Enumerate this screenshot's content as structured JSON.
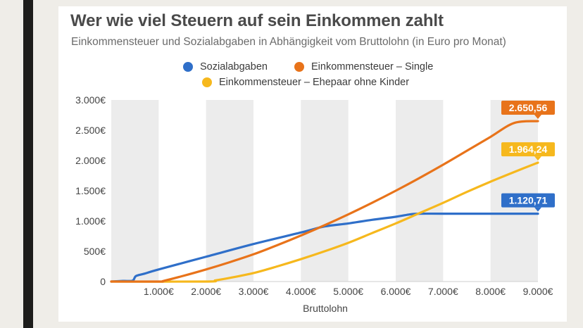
{
  "chart_data": {
    "type": "line",
    "title": "Wer wie viel Steuern auf sein Einkommen zahlt",
    "subtitle": "Einkommensteuer und Sozialabgaben in Abhängigkeit vom Bruttolohn (in Euro pro Monat)",
    "xlabel": "Bruttolohn",
    "ylabel": "",
    "xlim": [
      0,
      9000
    ],
    "ylim": [
      0,
      3000
    ],
    "x_ticks": [
      1000,
      2000,
      3000,
      4000,
      5000,
      6000,
      7000,
      8000,
      9000
    ],
    "x_tick_labels": [
      "1.000€",
      "2.000€",
      "3.000€",
      "4.000€",
      "5.000€",
      "6.000€",
      "7.000€",
      "8.000€",
      "9.000€"
    ],
    "y_ticks": [
      0,
      500,
      1000,
      1500,
      2000,
      2500,
      3000
    ],
    "y_tick_labels": [
      "0",
      "500€",
      "1.000€",
      "1.500€",
      "2.000€",
      "2.500€",
      "3.000€"
    ],
    "grid": "alternating vertical bands",
    "legend_position": "top",
    "series": [
      {
        "name": "Sozialabgaben",
        "color": "#2f6fc9",
        "end_label": "1.120,71",
        "x": [
          0,
          250,
          450,
          520,
          700,
          1000,
          2000,
          3000,
          4000,
          4500,
          5000,
          5500,
          6000,
          6300,
          6500,
          7000,
          8000,
          9000
        ],
        "y": [
          0,
          10,
          15,
          90,
          130,
          200,
          410,
          620,
          810,
          910,
          960,
          1020,
          1070,
          1110,
          1120.71,
          1120.71,
          1120.71,
          1120.71
        ]
      },
      {
        "name": "Einkommensteuer – Single",
        "color": "#e8731a",
        "end_label": "2.650,56",
        "x": [
          0,
          1000,
          1100,
          1500,
          2000,
          2500,
          3000,
          3500,
          4000,
          4500,
          5000,
          5500,
          6000,
          6500,
          7000,
          7500,
          8000,
          8500,
          9000
        ],
        "y": [
          0,
          0,
          10,
          90,
          200,
          320,
          450,
          600,
          760,
          930,
          1110,
          1300,
          1500,
          1710,
          1930,
          2160,
          2390,
          2620,
          2650.56
        ]
      },
      {
        "name": "Einkommensteuer – Ehepaar ohne Kinder",
        "color": "#f6b81d",
        "end_label": "1.964,24",
        "x": [
          0,
          2000,
          2200,
          2500,
          3000,
          3500,
          4000,
          4500,
          5000,
          5500,
          6000,
          6500,
          7000,
          7500,
          8000,
          8500,
          9000
        ],
        "y": [
          0,
          0,
          20,
          60,
          140,
          250,
          370,
          500,
          640,
          800,
          960,
          1130,
          1300,
          1480,
          1650,
          1810,
          1964.24
        ]
      }
    ]
  }
}
